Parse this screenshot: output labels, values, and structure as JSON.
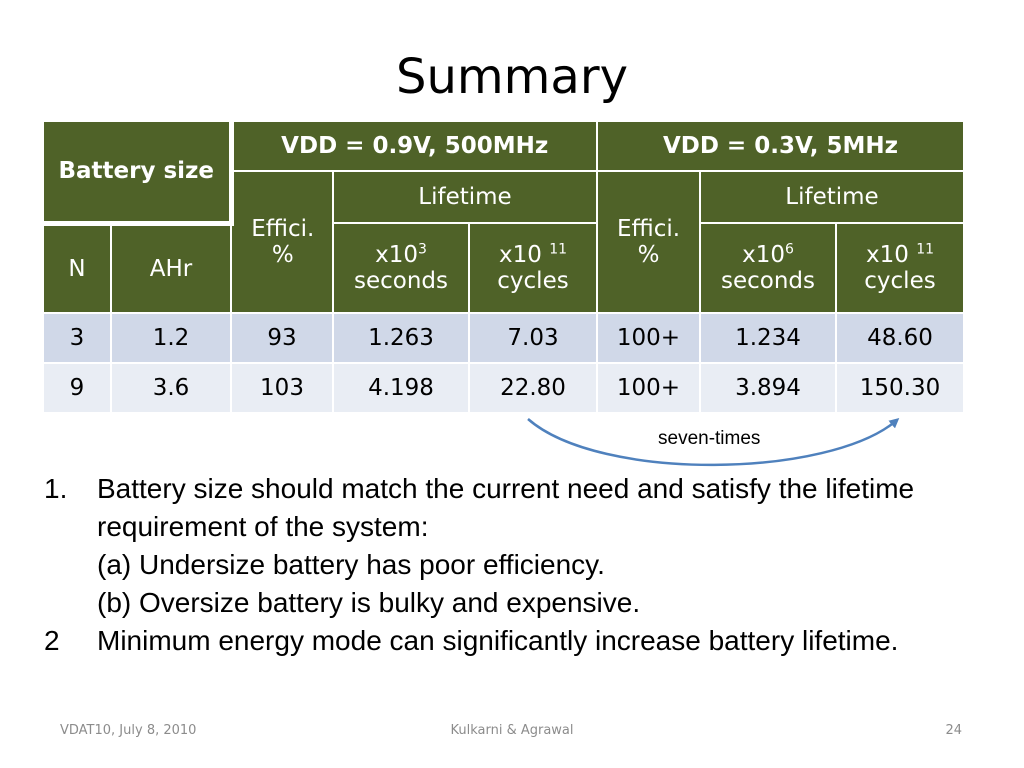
{
  "slide": {
    "title": "Summary"
  },
  "table": {
    "battery_size": "Battery size",
    "group1": "VDD = 0.9V, 500MHz",
    "group2": "VDD = 0.3V, 5MHz",
    "effici_line1": "Effici.",
    "effici_line2": "%",
    "lifetime": "Lifetime",
    "col_n": "N",
    "col_ahr": "AHr",
    "sec1_base": "x10",
    "sec1_exp": "3",
    "sec2_base": "x10",
    "sec2_exp": "6",
    "seconds": "seconds",
    "cyc_base": "x10 ",
    "cyc_exp": "11",
    "cycles": "cycles",
    "rows": [
      [
        "3",
        "1.2",
        "93",
        "1.263",
        "7.03",
        "100+",
        "1.234",
        "48.60"
      ],
      [
        "9",
        "3.6",
        "103",
        "4.198",
        "22.80",
        "100+",
        "3.894",
        "150.30"
      ]
    ]
  },
  "annotation": {
    "label": "seven-times",
    "color": "#4f81bd"
  },
  "bullets": [
    {
      "num": "1.",
      "lines": [
        "Battery size should match the current need and satisfy the lifetime requirement of the system:",
        "(a) Undersize battery has poor efficiency.",
        "(b) Oversize battery is bulky and expensive."
      ]
    },
    {
      "num": "2",
      "lines": [
        "Minimum energy mode can significantly increase battery lifetime."
      ]
    }
  ],
  "footer": {
    "left": "VDAT10, July 8, 2010",
    "center": "Kulkarni & Agrawal",
    "right": "24"
  },
  "colors": {
    "header_bg": "#4f6228",
    "row1_bg": "#d0d8e8",
    "row2_bg": "#e9edf4"
  }
}
